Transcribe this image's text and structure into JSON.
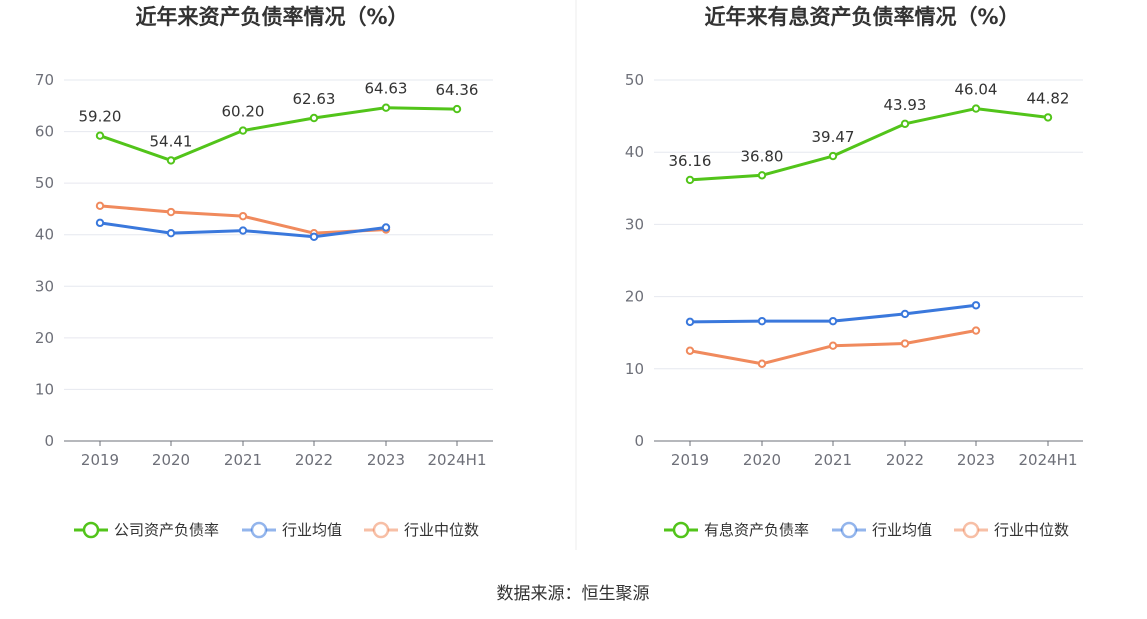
{
  "source": "数据来源：恒生聚源",
  "chart_data": [
    {
      "type": "line",
      "title": "近年来资产负债率情况（%）",
      "categories": [
        "2019",
        "2020",
        "2021",
        "2022",
        "2023",
        "2024H1"
      ],
      "ylim": [
        0,
        70
      ],
      "yticks": [
        0,
        10,
        20,
        30,
        40,
        50,
        60,
        70
      ],
      "series": [
        {
          "name": "公司资产负债率",
          "color": "#52c41a",
          "values": [
            59.2,
            54.41,
            60.2,
            62.63,
            64.63,
            64.36
          ],
          "labels": [
            "59.20",
            "54.41",
            "60.20",
            "62.63",
            "64.63",
            "64.36"
          ]
        },
        {
          "name": "行业均值",
          "color": "#3a78dc",
          "values": [
            42.3,
            40.3,
            40.8,
            39.6,
            41.4,
            null
          ],
          "labels": []
        },
        {
          "name": "行业中位数",
          "color": "#f08a5d",
          "values": [
            45.6,
            44.4,
            43.6,
            40.3,
            41.0,
            null
          ],
          "labels": []
        }
      ]
    },
    {
      "type": "line",
      "title": "近年来有息资产负债率情况（%）",
      "categories": [
        "2019",
        "2020",
        "2021",
        "2022",
        "2023",
        "2024H1"
      ],
      "ylim": [
        0,
        50
      ],
      "yticks": [
        0,
        10,
        20,
        30,
        40,
        50
      ],
      "series": [
        {
          "name": "有息资产负债率",
          "color": "#52c41a",
          "values": [
            36.16,
            36.8,
            39.47,
            43.93,
            46.04,
            44.82
          ],
          "labels": [
            "36.16",
            "36.80",
            "39.47",
            "43.93",
            "46.04",
            "44.82"
          ]
        },
        {
          "name": "行业均值",
          "color": "#3a78dc",
          "values": [
            16.5,
            16.6,
            16.6,
            17.6,
            18.8,
            null
          ],
          "labels": []
        },
        {
          "name": "行业中位数",
          "color": "#f08a5d",
          "values": [
            12.5,
            10.7,
            13.2,
            13.5,
            15.3,
            null
          ],
          "labels": []
        }
      ]
    }
  ]
}
